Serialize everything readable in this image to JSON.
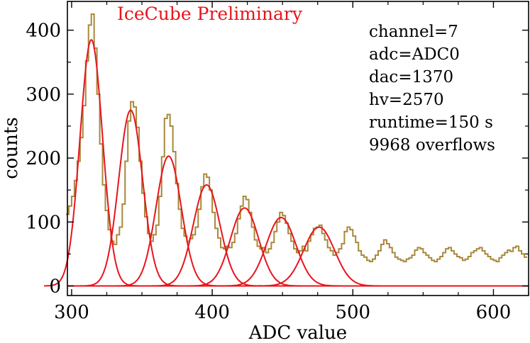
{
  "chart_data": {
    "type": "line",
    "title": "",
    "xlabel": "ADC value",
    "ylabel": "counts",
    "xlim": [
      297,
      625
    ],
    "ylim": [
      -15,
      445
    ],
    "xticks": [
      300,
      400,
      500,
      600
    ],
    "yticks": [
      0,
      100,
      200,
      300,
      400
    ],
    "grid": false,
    "watermark": "IceCube Preliminary",
    "annotations": [
      "channel=7",
      "adc=ADC0",
      "dac=1370",
      "hv=2570",
      "runtime=150 s",
      "9968 overflows"
    ],
    "colors": {
      "histogram": "#a8883a",
      "fit": "#e8141b"
    },
    "series": [
      {
        "kind": "histogram",
        "bin_width": 2,
        "x": [
          297,
          299,
          301,
          303,
          305,
          307,
          309,
          311,
          313,
          315,
          317,
          319,
          321,
          323,
          325,
          327,
          329,
          331,
          333,
          335,
          337,
          339,
          341,
          343,
          345,
          347,
          349,
          351,
          353,
          355,
          357,
          359,
          361,
          363,
          365,
          367,
          369,
          371,
          373,
          375,
          377,
          379,
          381,
          383,
          385,
          387,
          389,
          391,
          393,
          395,
          397,
          399,
          401,
          403,
          405,
          407,
          409,
          411,
          413,
          415,
          417,
          419,
          421,
          423,
          425,
          427,
          429,
          431,
          433,
          435,
          437,
          439,
          441,
          443,
          445,
          447,
          449,
          451,
          453,
          455,
          457,
          459,
          461,
          463,
          465,
          467,
          469,
          471,
          473,
          475,
          477,
          479,
          481,
          483,
          485,
          487,
          489,
          491,
          493,
          495,
          497,
          499,
          501,
          503,
          505,
          507,
          509,
          511,
          513,
          515,
          517,
          519,
          521,
          523,
          525,
          527,
          529,
          531,
          533,
          535,
          537,
          539,
          541,
          543,
          545,
          547,
          549,
          551,
          553,
          555,
          557,
          559,
          561,
          563,
          565,
          567,
          569,
          571,
          573,
          575,
          577,
          579,
          581,
          583,
          585,
          587,
          589,
          591,
          593,
          595,
          597,
          599,
          601,
          603,
          605,
          607,
          609,
          611,
          613,
          615,
          617,
          619,
          621,
          623
        ],
        "y": [
          112,
          125,
          140,
          165,
          195,
          232,
          282,
          352,
          408,
          425,
          372,
          300,
          222,
          158,
          118,
          88,
          70,
          65,
          80,
          92,
          128,
          195,
          258,
          288,
          280,
          248,
          195,
          145,
          108,
          82,
          70,
          80,
          95,
          140,
          202,
          262,
          268,
          250,
          210,
          160,
          120,
          90,
          78,
          70,
          74,
          80,
          92,
          120,
          155,
          175,
          170,
          150,
          115,
          90,
          75,
          60,
          58,
          62,
          60,
          68,
          82,
          105,
          125,
          140,
          135,
          115,
          92,
          72,
          62,
          58,
          60,
          52,
          58,
          68,
          85,
          100,
          115,
          110,
          98,
          82,
          70,
          58,
          52,
          55,
          62,
          55,
          70,
          80,
          90,
          92,
          95,
          82,
          72,
          60,
          55,
          48,
          52,
          58,
          66,
          85,
          92,
          88,
          78,
          68,
          55,
          48,
          45,
          40,
          38,
          42,
          48,
          55,
          65,
          72,
          66,
          60,
          52,
          45,
          42,
          40,
          38,
          42,
          44,
          48,
          56,
          60,
          58,
          52,
          48,
          44,
          40,
          38,
          42,
          46,
          52,
          58,
          60,
          55,
          50,
          46,
          44,
          40,
          42,
          46,
          52,
          55,
          58,
          60,
          55,
          50,
          46,
          42,
          40,
          38,
          44,
          48,
          52,
          56,
          54,
          60,
          62,
          55,
          50,
          45
        ]
      },
      {
        "kind": "fit",
        "function": "gaussian",
        "peaks": [
          {
            "mean": 314,
            "sigma": 8,
            "amplitude": 385
          },
          {
            "mean": 342,
            "sigma": 8.5,
            "amplitude": 275
          },
          {
            "mean": 369,
            "sigma": 9,
            "amplitude": 203
          },
          {
            "mean": 396,
            "sigma": 9.5,
            "amplitude": 158
          },
          {
            "mean": 423,
            "sigma": 10,
            "amplitude": 122
          },
          {
            "mean": 449,
            "sigma": 10.5,
            "amplitude": 107
          },
          {
            "mean": 476,
            "sigma": 11,
            "amplitude": 92
          }
        ]
      }
    ]
  }
}
